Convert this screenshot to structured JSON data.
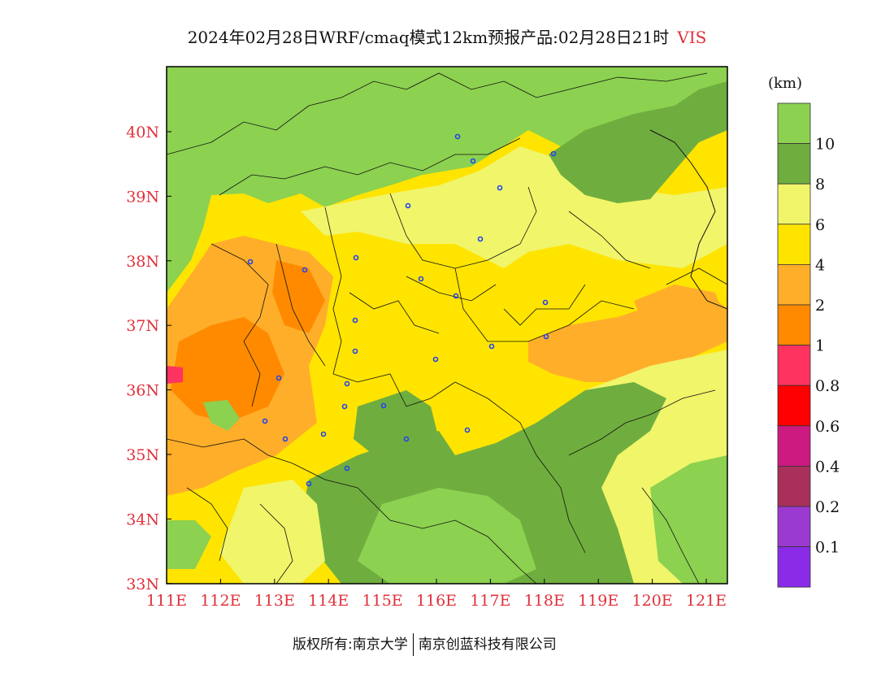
{
  "title": {
    "main": "2024年02月28日WRF/cmaq模式12km预报产品:02月28日21时",
    "variable": "VIS"
  },
  "map": {
    "lon_labels": [
      "111E",
      "112E",
      "113E",
      "114E",
      "115E",
      "116E",
      "117E",
      "118E",
      "119E",
      "120E",
      "121E"
    ],
    "lat_labels": [
      "40N",
      "39N",
      "38N",
      "37N",
      "36N",
      "35N",
      "34N",
      "33N"
    ]
  },
  "colorbar": {
    "unit": "(km)",
    "bins": [
      {
        "color": "#8cd150",
        "label": "10"
      },
      {
        "color": "#6fae3e",
        "label": "8"
      },
      {
        "color": "#f0f56a",
        "label": "6"
      },
      {
        "color": "#ffe400",
        "label": "4"
      },
      {
        "color": "#ffae2a",
        "label": "2"
      },
      {
        "color": "#ff8a00",
        "label": "1"
      },
      {
        "color": "#ff3360",
        "label": "0.8"
      },
      {
        "color": "#ff0000",
        "label": "0.6"
      },
      {
        "color": "#cc1a80",
        "label": "0.4"
      },
      {
        "color": "#a8305a",
        "label": "0.2"
      },
      {
        "color": "#9a3ad0",
        "label": "0.1"
      },
      {
        "color": "#8a2be8",
        "label": ""
      }
    ]
  },
  "footer": {
    "left": "版权所有:南京大学",
    "right": "南京创蓝科技有限公司"
  }
}
